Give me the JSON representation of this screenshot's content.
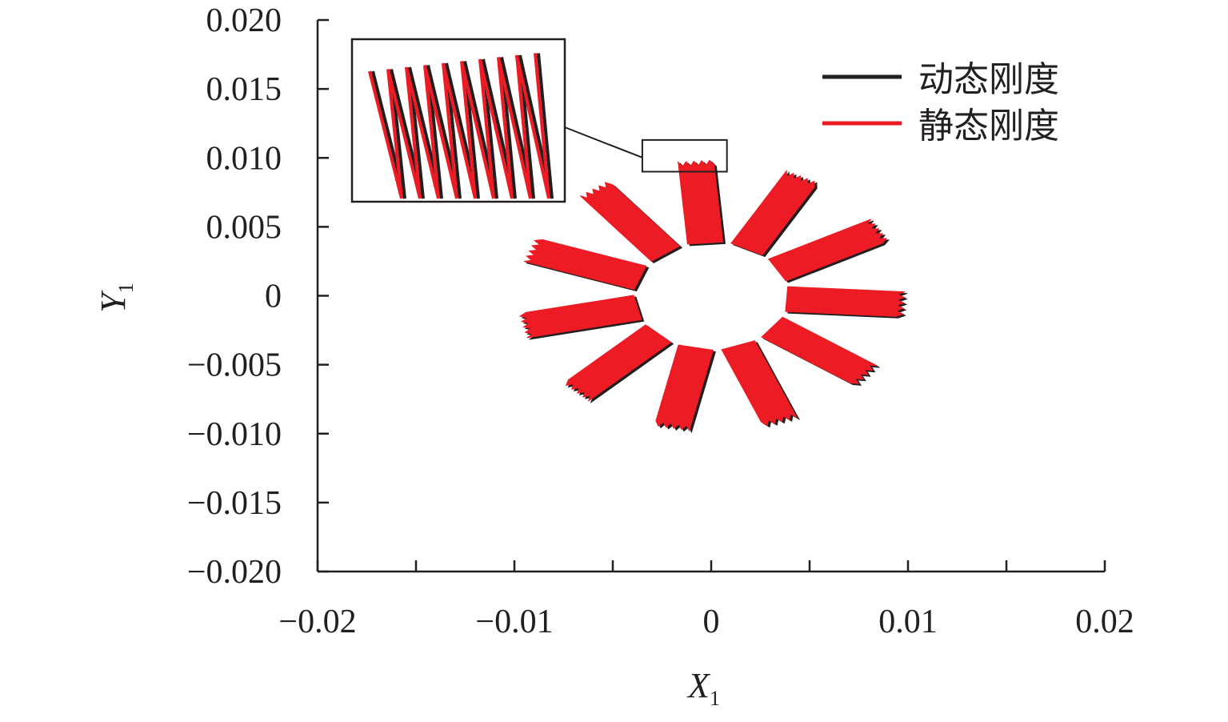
{
  "chart_data": {
    "type": "line",
    "xlabel": "X",
    "xlabel_sub": "1",
    "ylabel": "Y",
    "ylabel_sub": "1",
    "xlim": [
      -0.02,
      0.02
    ],
    "ylim": [
      -0.02,
      0.02
    ],
    "x_ticks": [
      -0.02,
      -0.015,
      -0.01,
      -0.005,
      0,
      0.005,
      0.01,
      0.015,
      0.02
    ],
    "x_tick_labels": [
      "−0.02",
      "−0.01",
      "0",
      "0.01",
      "0.02"
    ],
    "x_tick_label_values": [
      -0.02,
      -0.01,
      0,
      0.01,
      0.02
    ],
    "y_ticks": [
      0.02,
      0.015,
      0.01,
      0.005,
      0,
      -0.005,
      -0.01,
      -0.015,
      -0.02
    ],
    "y_tick_labels": [
      "0.020",
      "0.015",
      "0.010",
      "0.005",
      "0",
      "−0.005",
      "−0.010",
      "−0.015",
      "−0.020"
    ],
    "grid": false,
    "legend_position": "top-right",
    "series": [
      {
        "name": "动态刚度",
        "color": "#231f20",
        "orbit_offset": 0.00012
      },
      {
        "name": "静态刚度",
        "color": "#ed1c24",
        "orbit_offset": 0
      }
    ],
    "orbit": {
      "center": [
        0.0,
        0.0
      ],
      "lobes": 11,
      "inner_radius": 0.0012,
      "outer_radius": 0.0098,
      "band_width": 0.0018
    },
    "inset": {
      "source_x_range": [
        -0.0035,
        0.0008
      ],
      "source_y_range": [
        0.009,
        0.0113
      ]
    }
  }
}
